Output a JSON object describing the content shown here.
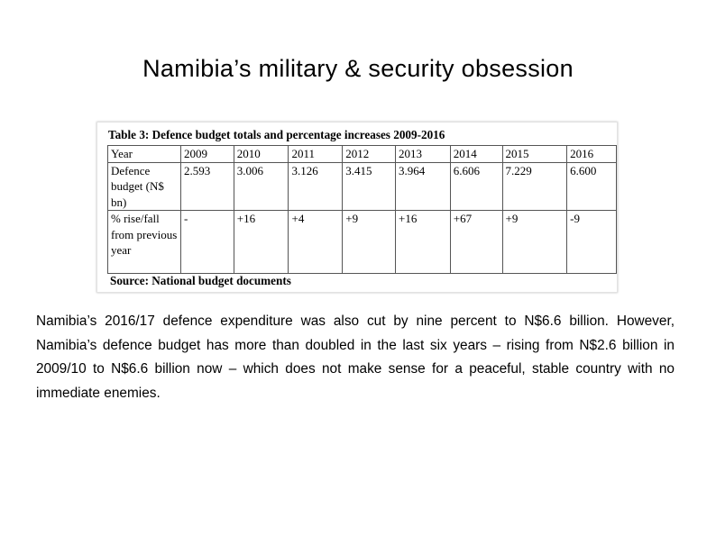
{
  "slide": {
    "title": "Namibia’s military & security obsession"
  },
  "figure": {
    "caption": "Table 3: Defence budget totals and percentage increases 2009-2016",
    "source": "Source: National budget documents",
    "header": [
      "Year",
      "2009",
      "2010",
      "2011",
      "2012",
      "2013",
      "2014",
      "2015",
      "2016"
    ],
    "rows": [
      {
        "label": "Defence budget (N$ bn)",
        "values": [
          "2.593",
          "3.006",
          "3.126",
          "3.415",
          "3.964",
          "6.606",
          "7.229",
          "6.600"
        ]
      },
      {
        "label": "% rise/fall from previous year",
        "values": [
          "-",
          "+16",
          "+4",
          "+9",
          "+16",
          "+67",
          "+9",
          "-9"
        ]
      }
    ]
  },
  "body": {
    "paragraph": "Namibia’s 2016/17 defence expenditure was also cut by nine percent to N$6.6 billion. However, Namibia’s defence budget has more than doubled in the last six years – rising from N$2.6 billion in 2009/10 to N$6.6 billion now – which does not make sense for a peaceful, stable country with no immediate enemies."
  }
}
